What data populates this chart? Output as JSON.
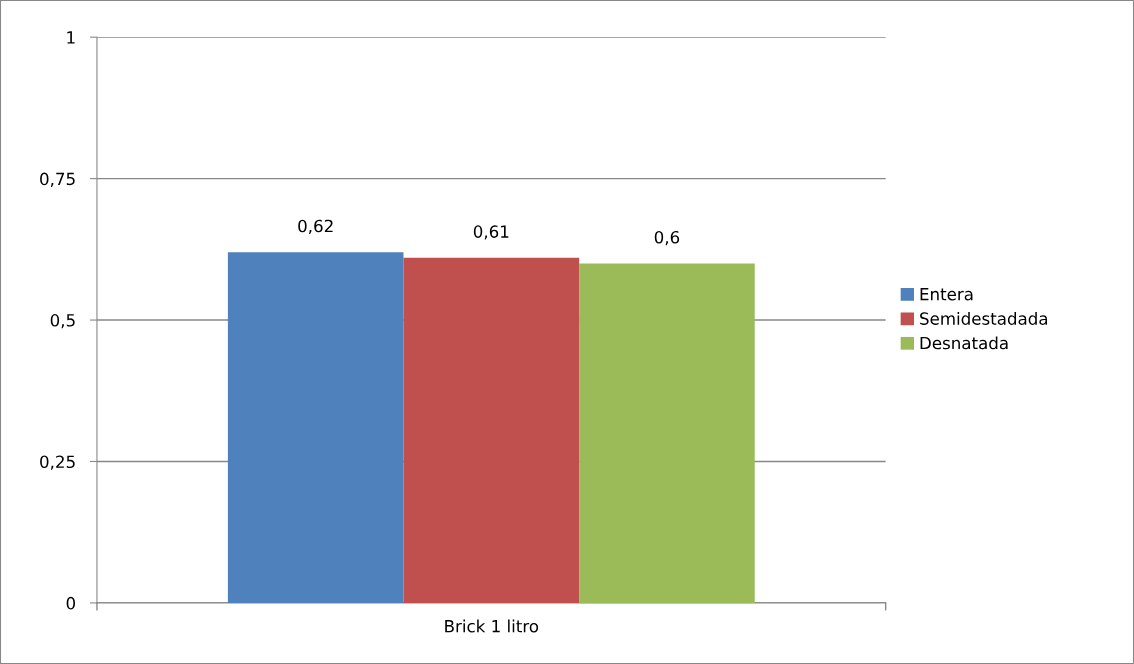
{
  "chart_data": {
    "type": "bar",
    "categories": [
      "Brick 1 litro"
    ],
    "series": [
      {
        "name": "Entera",
        "color": "#4f81bd",
        "values": [
          0.62
        ],
        "value_labels": [
          "0,62"
        ]
      },
      {
        "name": "Semidestadada",
        "color": "#c0504d",
        "values": [
          0.61
        ],
        "value_labels": [
          "0,61"
        ]
      },
      {
        "name": "Desnatada",
        "color": "#9bbb59",
        "values": [
          0.6
        ],
        "value_labels": [
          "0,6"
        ]
      }
    ],
    "ylim": [
      0,
      1
    ],
    "yticks": [
      {
        "value": 0,
        "label": "0"
      },
      {
        "value": 0.25,
        "label": "0,25"
      },
      {
        "value": 0.5,
        "label": "0,5"
      },
      {
        "value": 0.75,
        "label": "0,75"
      },
      {
        "value": 1,
        "label": "1"
      }
    ],
    "grid": "y",
    "legend": "right"
  }
}
